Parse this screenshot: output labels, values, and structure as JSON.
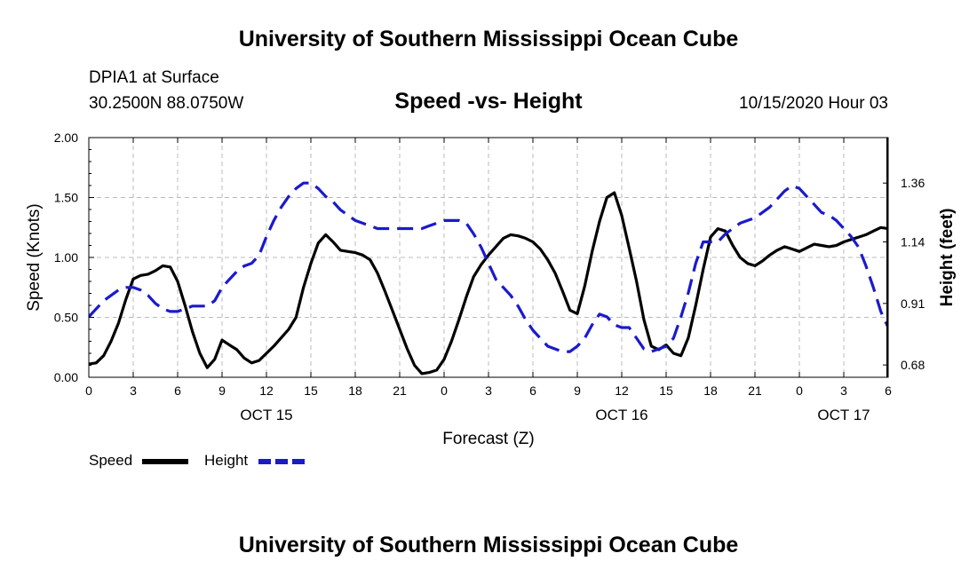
{
  "header": {
    "title": "University of Southern Mississippi Ocean Cube",
    "station": "DPIA1 at Surface",
    "coords": "30.2500N 88.0750W",
    "chart_title": "Speed -vs- Height",
    "datetime": "10/15/2020 Hour 03"
  },
  "footer": {
    "title": "University of Southern Mississippi Ocean Cube"
  },
  "legend": {
    "speed_label": "Speed",
    "height_label": "Height",
    "speed_color": "#000000",
    "height_color": "#1a1acc"
  },
  "chart_data": {
    "type": "line",
    "title": "Speed -vs- Height",
    "xlabel": "Forecast (Z)",
    "ylabel_left": "Speed (Knots)",
    "ylabel_right": "Height (feet)",
    "x_range_hours": [
      0,
      54
    ],
    "x_tick_hours": [
      0,
      3,
      6,
      9,
      12,
      15,
      18,
      21,
      24,
      27,
      30,
      33,
      36,
      39,
      42,
      45,
      48,
      51,
      54
    ],
    "x_tick_labels": [
      "0",
      "3",
      "6",
      "9",
      "12",
      "15",
      "18",
      "21",
      "0",
      "3",
      "6",
      "9",
      "12",
      "15",
      "18",
      "21",
      "0",
      "3",
      "6"
    ],
    "day_labels": [
      {
        "hour": 12,
        "label": "OCT 15"
      },
      {
        "hour": 36,
        "label": "OCT 16"
      },
      {
        "hour": 51,
        "label": "OCT 17"
      }
    ],
    "ylim_left": [
      0,
      2
    ],
    "y_ticks_left": [
      0,
      0.5,
      1,
      1.5,
      2
    ],
    "y_tick_labels_left": [
      "0.00",
      "0.50",
      "1.00",
      "1.50",
      "2.00"
    ],
    "ylim_right": [
      0.634,
      1.53
    ],
    "y_ticks_right": [
      0.68,
      0.91,
      1.14,
      1.36
    ],
    "y_tick_labels_right": [
      "0.68",
      "0.91",
      "1.14",
      "1.36"
    ],
    "grid": true,
    "series": [
      {
        "name": "Speed",
        "axis": "left",
        "style": "solid",
        "x": [
          0,
          0.5,
          1,
          1.5,
          2,
          2.5,
          3,
          3.5,
          4,
          4.5,
          5,
          5.5,
          6,
          6.5,
          7,
          7.5,
          8,
          8.5,
          9,
          9.5,
          10,
          10.5,
          11,
          11.5,
          12,
          12.5,
          13,
          13.5,
          14,
          14.5,
          15,
          15.5,
          16,
          16.5,
          17,
          17.5,
          18,
          18.5,
          19,
          19.5,
          20,
          20.5,
          21,
          21.5,
          22,
          22.5,
          23,
          23.5,
          24,
          24.5,
          25,
          25.5,
          26,
          26.5,
          27,
          27.5,
          28,
          28.5,
          29,
          29.5,
          30,
          30.5,
          31,
          31.5,
          32,
          32.5,
          33,
          33.5,
          34,
          34.5,
          35,
          35.5,
          36,
          36.5,
          37,
          37.5,
          38,
          38.5,
          39,
          39.5,
          40,
          40.5,
          41,
          41.5,
          42,
          42.5,
          43,
          43.5,
          44,
          44.5,
          45,
          45.5,
          46,
          46.5,
          47,
          47.5,
          48,
          48.5,
          49,
          49.5,
          50,
          50.5,
          51,
          51.5,
          52,
          52.5,
          53,
          53.5,
          54
        ],
        "values": [
          0.11,
          0.12,
          0.18,
          0.3,
          0.45,
          0.65,
          0.82,
          0.85,
          0.86,
          0.89,
          0.93,
          0.92,
          0.8,
          0.6,
          0.38,
          0.2,
          0.08,
          0.15,
          0.31,
          0.27,
          0.23,
          0.16,
          0.12,
          0.14,
          0.2,
          0.26,
          0.33,
          0.4,
          0.5,
          0.75,
          0.95,
          1.12,
          1.19,
          1.13,
          1.06,
          1.05,
          1.04,
          1.02,
          0.98,
          0.87,
          0.72,
          0.56,
          0.4,
          0.24,
          0.1,
          0.03,
          0.04,
          0.06,
          0.15,
          0.3,
          0.48,
          0.67,
          0.84,
          0.94,
          1.02,
          1.09,
          1.16,
          1.19,
          1.18,
          1.16,
          1.13,
          1.07,
          0.98,
          0.87,
          0.72,
          0.56,
          0.53,
          0.76,
          1.05,
          1.3,
          1.5,
          1.54,
          1.35,
          1.08,
          0.8,
          0.48,
          0.26,
          0.23,
          0.27,
          0.2,
          0.18,
          0.33,
          0.6,
          0.9,
          1.17,
          1.24,
          1.22,
          1.1,
          1.0,
          0.95,
          0.93,
          0.97,
          1.02,
          1.06,
          1.09,
          1.07,
          1.05,
          1.08,
          1.11,
          1.1,
          1.09,
          1.1,
          1.13,
          1.15,
          1.17,
          1.19,
          1.22,
          1.25,
          1.24
        ]
      },
      {
        "name": "Height",
        "axis": "right",
        "style": "dashed",
        "x": [
          0,
          0.5,
          1,
          1.5,
          2,
          2.5,
          3,
          3.5,
          4,
          4.5,
          5,
          5.5,
          6,
          6.5,
          7,
          7.5,
          8,
          8.5,
          9,
          9.5,
          10,
          10.5,
          11,
          11.5,
          12,
          12.5,
          13,
          13.5,
          14,
          14.5,
          15,
          15.5,
          16,
          16.5,
          17,
          17.5,
          18,
          18.5,
          19,
          19.5,
          20,
          20.5,
          21,
          21.5,
          22,
          22.5,
          23,
          23.5,
          24,
          24.5,
          25,
          25.5,
          26,
          26.5,
          27,
          27.5,
          28,
          28.5,
          29,
          29.5,
          30,
          30.5,
          31,
          31.5,
          32,
          32.5,
          33,
          33.5,
          34,
          34.5,
          35,
          35.5,
          36,
          36.5,
          37,
          37.5,
          38,
          38.5,
          39,
          39.5,
          40,
          40.5,
          41,
          41.5,
          42,
          42.5,
          43,
          43.5,
          44,
          44.5,
          45,
          45.5,
          46,
          46.5,
          47,
          47.5,
          48,
          48.5,
          49,
          49.5,
          50,
          50.5,
          51,
          51.5,
          52,
          52.5,
          53,
          53.5,
          54
        ],
        "values": [
          0.86,
          0.89,
          0.92,
          0.94,
          0.96,
          0.97,
          0.97,
          0.96,
          0.94,
          0.91,
          0.89,
          0.88,
          0.88,
          0.89,
          0.9,
          0.9,
          0.9,
          0.92,
          0.97,
          1.0,
          1.03,
          1.05,
          1.06,
          1.09,
          1.16,
          1.22,
          1.27,
          1.31,
          1.34,
          1.36,
          1.36,
          1.34,
          1.31,
          1.29,
          1.26,
          1.24,
          1.22,
          1.21,
          1.2,
          1.19,
          1.19,
          1.19,
          1.19,
          1.19,
          1.19,
          1.19,
          1.2,
          1.21,
          1.22,
          1.22,
          1.22,
          1.21,
          1.17,
          1.12,
          1.06,
          1.0,
          0.97,
          0.94,
          0.9,
          0.85,
          0.81,
          0.78,
          0.75,
          0.74,
          0.73,
          0.73,
          0.75,
          0.78,
          0.83,
          0.87,
          0.86,
          0.83,
          0.82,
          0.82,
          0.78,
          0.74,
          0.73,
          0.74,
          0.75,
          0.78,
          0.86,
          0.95,
          1.06,
          1.14,
          1.14,
          1.14,
          1.17,
          1.19,
          1.21,
          1.22,
          1.23,
          1.25,
          1.27,
          1.3,
          1.33,
          1.35,
          1.34,
          1.31,
          1.28,
          1.25,
          1.24,
          1.22,
          1.19,
          1.16,
          1.12,
          1.05,
          0.97,
          0.88,
          0.82
        ]
      }
    ]
  }
}
